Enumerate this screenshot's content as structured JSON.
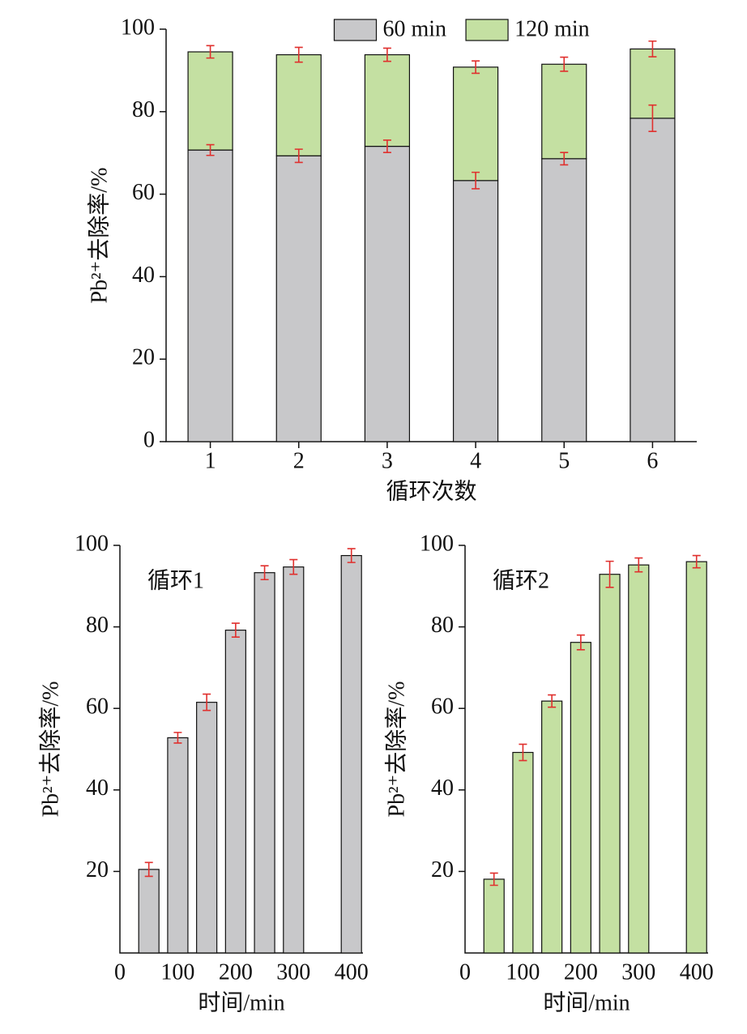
{
  "chart_data": [
    {
      "type": "stacked_bar",
      "xlabel": "循环次数",
      "ylabel": "Pb²⁺去除率/%",
      "categories": [
        "1",
        "2",
        "3",
        "4",
        "5",
        "6"
      ],
      "series": [
        {
          "name": "60 min",
          "color": "#c8c8ca",
          "values": [
            70.7,
            69.3,
            71.6,
            63.3,
            68.6,
            78.4
          ],
          "errors": [
            1.3,
            1.6,
            1.5,
            2.0,
            1.5,
            3.2
          ]
        },
        {
          "name": "120 min",
          "color": "#c4e0a2",
          "values": [
            23.8,
            24.5,
            22.2,
            27.5,
            22.9,
            16.8
          ],
          "errors": [
            1.5,
            1.8,
            1.6,
            1.5,
            1.7,
            1.9
          ]
        }
      ],
      "error_color": "#e0302e",
      "legend": "top",
      "ylim": [
        0,
        100
      ],
      "yticks": [
        0,
        20,
        40,
        60,
        80,
        100
      ]
    },
    {
      "type": "bar",
      "annotation": "循环1",
      "xlabel": "时间/min",
      "ylabel": "Pb²⁺去除率/%",
      "x": [
        50,
        100,
        150,
        200,
        250,
        300,
        400
      ],
      "values": [
        20.5,
        52.8,
        61.5,
        79.2,
        93.3,
        94.7,
        97.5
      ],
      "errors": [
        1.7,
        1.3,
        2.0,
        1.7,
        1.7,
        1.8,
        1.7
      ],
      "color": "#c8c8ca",
      "error_color": "#e0302e",
      "xlim": [
        0,
        420
      ],
      "xticks": [
        0,
        100,
        200,
        300,
        400
      ],
      "ylim": [
        0,
        100
      ],
      "yticks": [
        20,
        40,
        60,
        80,
        100
      ]
    },
    {
      "type": "bar",
      "annotation": "循环2",
      "xlabel": "时间/min",
      "ylabel": "Pb²⁺去除率/%",
      "x": [
        50,
        100,
        150,
        200,
        250,
        300,
        400
      ],
      "values": [
        18.1,
        49.2,
        61.8,
        76.2,
        92.9,
        95.2,
        96.0
      ],
      "errors": [
        1.5,
        2.0,
        1.5,
        1.8,
        3.2,
        1.7,
        1.5
      ],
      "color": "#c4e0a2",
      "error_color": "#e0302e",
      "xlim": [
        0,
        420
      ],
      "xticks": [
        0,
        100,
        200,
        300,
        400
      ],
      "ylim": [
        0,
        100
      ],
      "yticks": [
        20,
        40,
        60,
        80,
        100
      ]
    }
  ]
}
